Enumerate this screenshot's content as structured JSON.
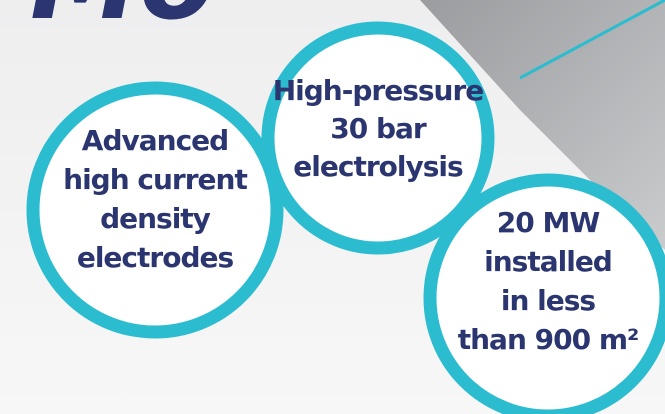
{
  "title": "Mo",
  "circles": [
    {
      "lines": [
        "Advanced",
        "high current",
        "density",
        "electrodes"
      ]
    },
    {
      "lines": [
        "High-pressure",
        "30 bar",
        "electrolysis"
      ]
    },
    {
      "lines": [
        "20 MW",
        "installed",
        "in less",
        "than 900 m²"
      ]
    }
  ]
}
